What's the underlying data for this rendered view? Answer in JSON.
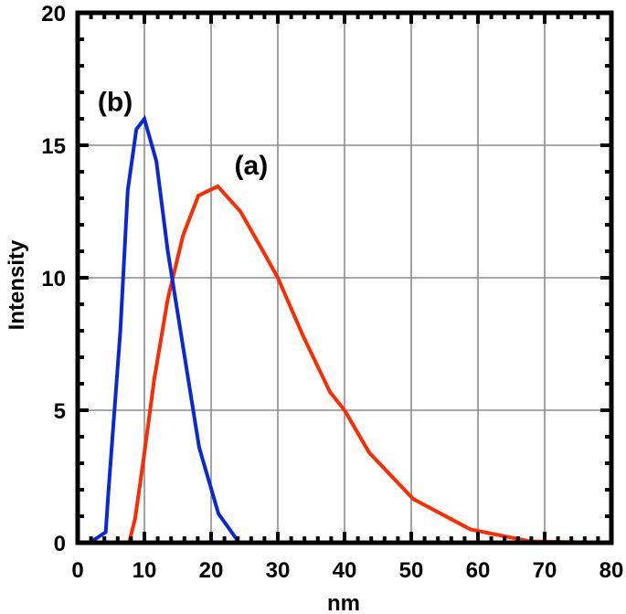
{
  "chart_data": {
    "type": "line",
    "title": "",
    "xlabel": "nm",
    "ylabel": "Intensity",
    "xlim": [
      0,
      80
    ],
    "ylim": [
      0,
      20
    ],
    "xticks": [
      0,
      10,
      20,
      30,
      40,
      50,
      60,
      70,
      80
    ],
    "yticks": [
      0,
      5,
      10,
      15,
      20
    ],
    "x_minor_step": 2,
    "y_minor_step": 1,
    "grid": true,
    "legend": null,
    "annotations": [
      {
        "text": "(a)",
        "x": 23.5,
        "y": 13.9,
        "series": "(a)"
      },
      {
        "text": "(b)",
        "x": 3.0,
        "y": 16.3,
        "series": "(b)"
      }
    ],
    "series": [
      {
        "name": "(a)",
        "color": "#ff2a00",
        "x": [
          0,
          7.7,
          8.6,
          9.8,
          11.5,
          13.5,
          15.8,
          18.1,
          21.0,
          24.4,
          27.8,
          30.0,
          33.8,
          37.8,
          40.0,
          43.7,
          50.3,
          58.9,
          67.8,
          80
        ],
        "y": [
          0,
          0,
          0.9,
          3.0,
          6.2,
          9.2,
          11.6,
          13.1,
          13.45,
          12.5,
          11.0,
          10.0,
          7.8,
          5.7,
          5.0,
          3.4,
          1.65,
          0.5,
          0.05,
          0
        ]
      },
      {
        "name": "(b)",
        "color": "#0a28d8",
        "x": [
          0,
          1.8,
          4.2,
          4.6,
          6.4,
          7.5,
          8.8,
          10.0,
          11.8,
          13.5,
          15.8,
          18.2,
          21.1,
          24.2,
          80
        ],
        "y": [
          0,
          0,
          0.4,
          1.9,
          8.0,
          13.3,
          15.6,
          16.0,
          14.4,
          11.0,
          7.4,
          3.6,
          1.1,
          0,
          0
        ]
      }
    ]
  }
}
